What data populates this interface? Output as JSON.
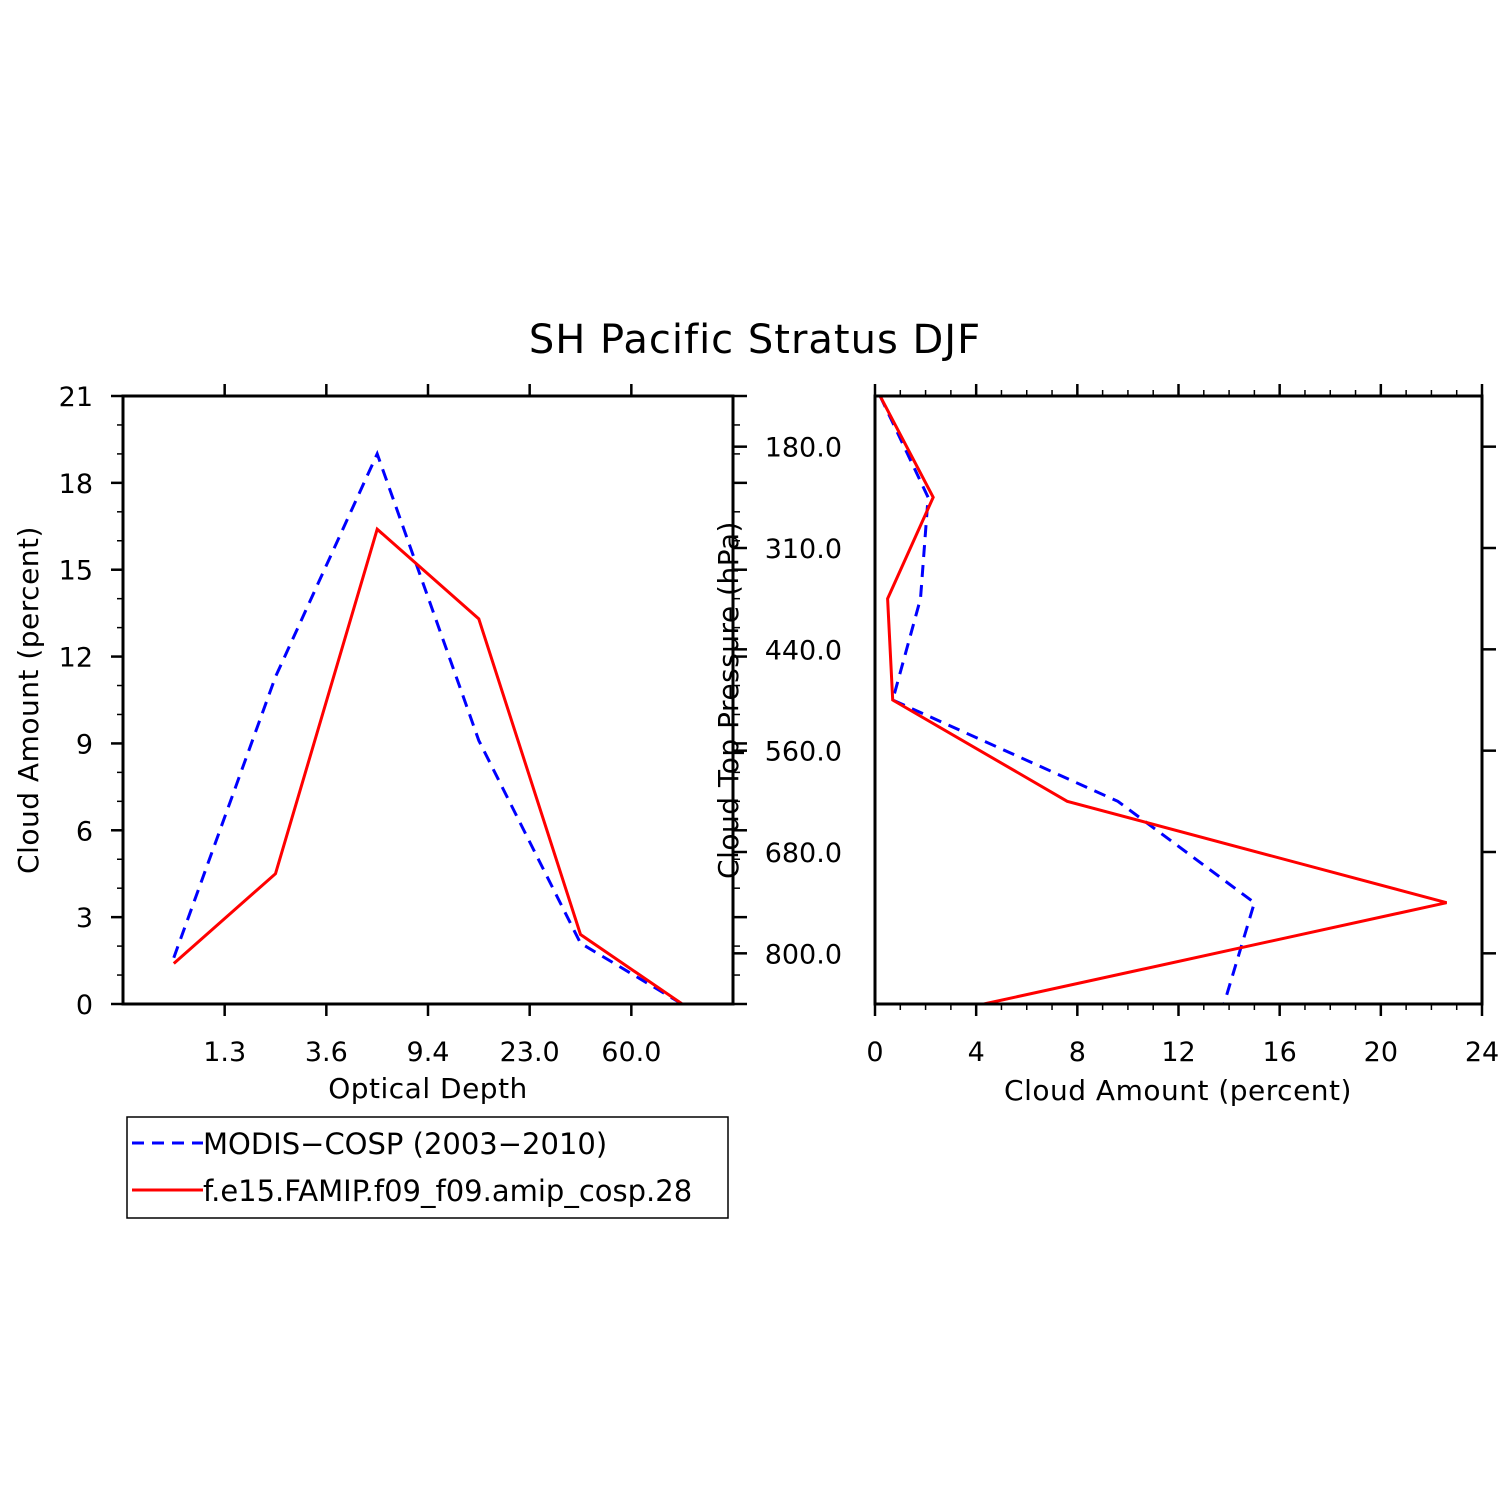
{
  "title": "SH Pacific Stratus DJF",
  "colors": {
    "obs": "#0000ff",
    "model": "#ff0000"
  },
  "legend": {
    "obs": "MODIS−COSP (2003−2010)",
    "model": "f.e15.FAMIP.f09_f09.amip_cosp.28"
  },
  "chart_data": [
    {
      "type": "line",
      "xlabel": "Optical Depth",
      "ylabel": "Cloud Amount (percent)",
      "x_categories": [
        "1.3",
        "3.6",
        "9.4",
        "23.0",
        "60.0"
      ],
      "yticks": [
        "0",
        "3",
        "6",
        "9",
        "12",
        "15",
        "18",
        "21"
      ],
      "ylim": [
        0,
        21
      ],
      "series": [
        {
          "name": "MODIS−COSP (2003−2010)",
          "style": "dashed",
          "x": [
            0.5,
            1.5,
            2.5,
            3.5,
            4.5,
            5.5
          ],
          "values": [
            1.6,
            11.3,
            19.0,
            9.1,
            2.1,
            0.0
          ]
        },
        {
          "name": "f.e15.FAMIP.f09_f09.amip_cosp.28",
          "style": "solid",
          "x": [
            0.5,
            1.5,
            2.5,
            3.5,
            4.5,
            5.5
          ],
          "values": [
            1.4,
            4.5,
            16.4,
            13.3,
            2.4,
            0.0
          ]
        }
      ]
    },
    {
      "type": "line",
      "xlabel": "Cloud Amount (percent)",
      "ylabel": "Cloud Top Pressure (hPa)",
      "xticks": [
        "0",
        "4",
        "8",
        "12",
        "16",
        "20",
        "24"
      ],
      "xlim": [
        0,
        24
      ],
      "y_categories": [
        "180.0",
        "310.0",
        "440.0",
        "560.0",
        "680.0",
        "800.0"
      ],
      "series": [
        {
          "name": "MODIS−COSP (2003−2010)",
          "style": "dashed",
          "x": [
            0.2,
            2.1,
            1.8,
            0.7,
            9.6,
            15.0,
            13.8
          ],
          "levels": [
            0.0,
            1.0,
            2.0,
            3.0,
            4.0,
            5.0,
            6.0
          ]
        },
        {
          "name": "f.e15.FAMIP.f09_f09.amip_cosp.28",
          "style": "solid",
          "x": [
            0.2,
            2.3,
            0.5,
            0.7,
            7.6,
            22.6,
            4.3
          ],
          "levels": [
            0.0,
            1.0,
            2.0,
            3.0,
            4.0,
            5.0,
            6.0
          ]
        }
      ]
    }
  ]
}
